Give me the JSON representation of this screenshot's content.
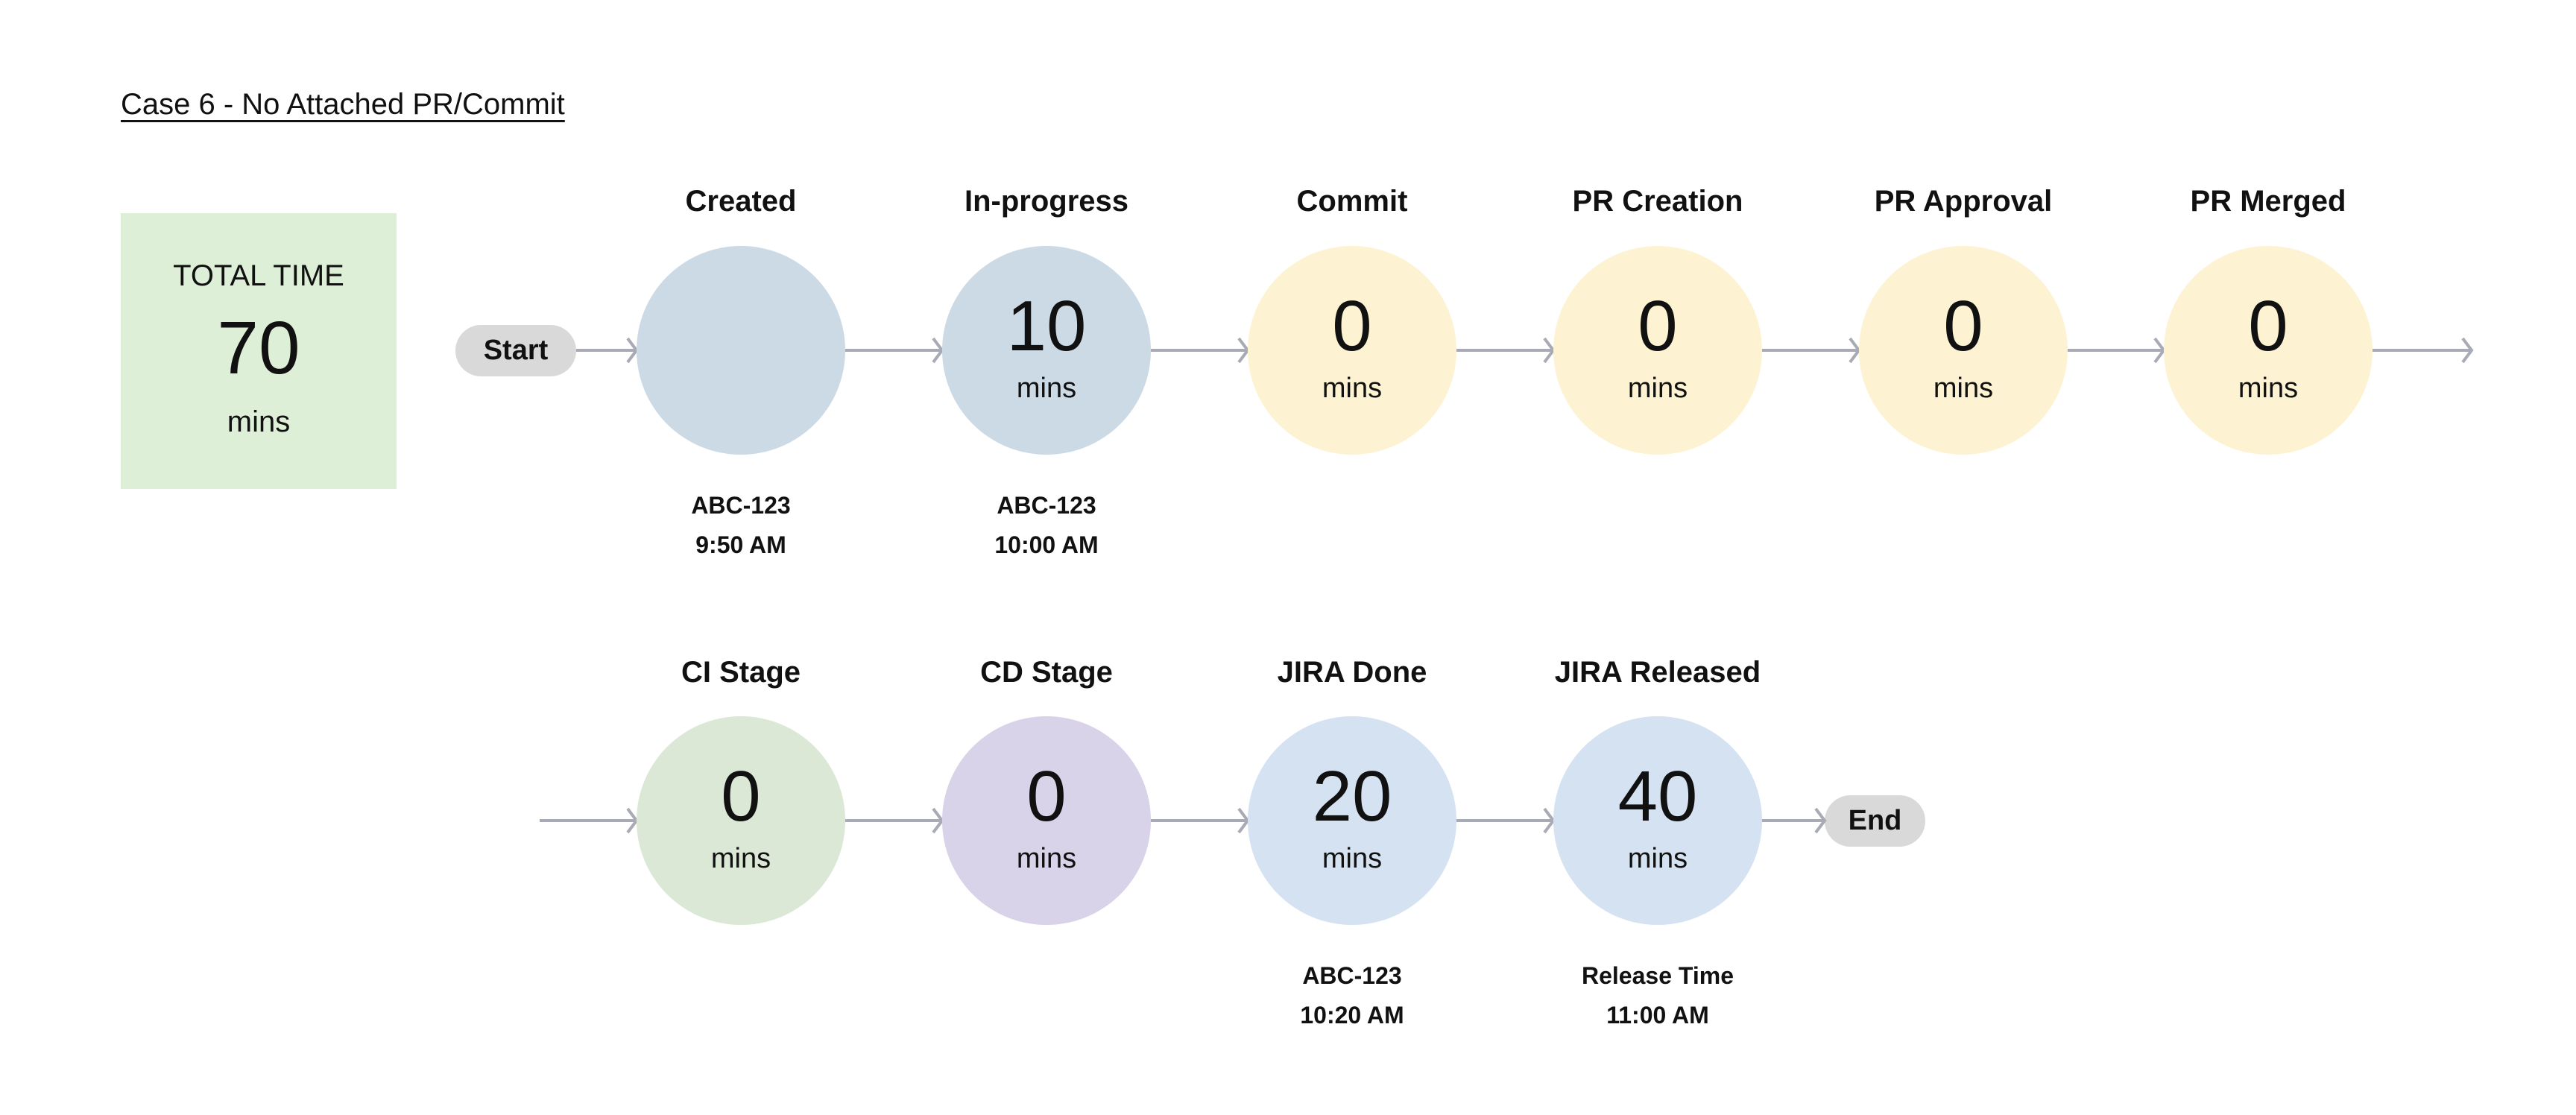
{
  "title": "Case 6 - No Attached PR/Commit",
  "total": {
    "label": "TOTAL TIME",
    "value": "70",
    "unit": "mins"
  },
  "start_label": "Start",
  "end_label": "End",
  "colors": {
    "arrow": "#a8aab5",
    "pill": "#d9d9d9",
    "total_bg": "#ddf0d7"
  },
  "rows": [
    [
      {
        "label": "Created",
        "value": "",
        "unit": "",
        "color": "#ccdae6",
        "sub": [
          "ABC-123",
          "9:50 AM"
        ]
      },
      {
        "label": "In-progress",
        "value": "10",
        "unit": "mins",
        "color": "#ccdae6",
        "sub": [
          "ABC-123",
          "10:00 AM"
        ]
      },
      {
        "label": "Commit",
        "value": "0",
        "unit": "mins",
        "color": "#fdf3d2",
        "sub": []
      },
      {
        "label": "PR Creation",
        "value": "0",
        "unit": "mins",
        "color": "#fdf3d2",
        "sub": []
      },
      {
        "label": "PR Approval",
        "value": "0",
        "unit": "mins",
        "color": "#fdf3d2",
        "sub": []
      },
      {
        "label": "PR Merged",
        "value": "0",
        "unit": "mins",
        "color": "#fdf3d2",
        "sub": []
      }
    ],
    [
      {
        "label": "CI Stage",
        "value": "0",
        "unit": "mins",
        "color": "#dce8d6",
        "sub": []
      },
      {
        "label": "CD Stage",
        "value": "0",
        "unit": "mins",
        "color": "#d8d3e8",
        "sub": []
      },
      {
        "label": "JIRA Done",
        "value": "20",
        "unit": "mins",
        "color": "#d5e2f1",
        "sub": [
          "ABC-123",
          "10:20 AM"
        ]
      },
      {
        "label": "JIRA Released",
        "value": "40",
        "unit": "mins",
        "color": "#d5e2f1",
        "sub": [
          "Release Time",
          "11:00 AM"
        ]
      }
    ]
  ]
}
